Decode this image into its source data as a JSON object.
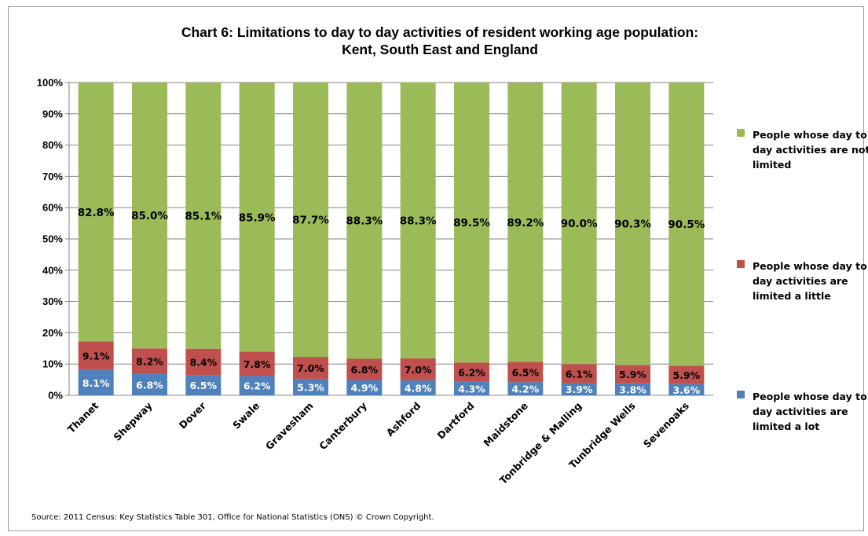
{
  "title_line1": "Chart 6: Limitations to day to day activities of resident working age population:",
  "title_line2": "Kent, South East and England",
  "source": "Source: 2011 Census: Key Statistics Table 301, Office for National Statistics (ONS) © Crown Copyright.",
  "colors": {
    "not_limited": "#9bbb59",
    "limited_little": "#c0504d",
    "limited_lot": "#4f81bd"
  },
  "chart_data": {
    "type": "bar",
    "stacked": true,
    "percent_stacked": true,
    "categories": [
      "Thanet",
      "Shepway",
      "Dover",
      "Swale",
      "Gravesham",
      "Canterbury",
      "Ashford",
      "Dartford",
      "Maidstone",
      "Tonbridge & Malling",
      "Tunbridge Wells",
      "Sevenoaks"
    ],
    "series": [
      {
        "name": "People whose day to day activities are limited a lot",
        "color": "#4f81bd",
        "values": [
          8.1,
          6.8,
          6.5,
          6.2,
          5.3,
          4.9,
          4.8,
          4.3,
          4.2,
          3.9,
          3.8,
          3.6
        ],
        "labels": [
          "8.1%",
          "6.8%",
          "6.5%",
          "6.2%",
          "5.3%",
          "4.9%",
          "4.8%",
          "4.3%",
          "4.2%",
          "3.9%",
          "3.8%",
          "3.6%"
        ]
      },
      {
        "name": "People whose day to day activities are limited a little",
        "color": "#c0504d",
        "values": [
          9.1,
          8.2,
          8.4,
          7.8,
          7.0,
          6.8,
          7.0,
          6.2,
          6.5,
          6.1,
          5.9,
          5.9
        ],
        "labels": [
          "9.1%",
          "8.2%",
          "8.4%",
          "7.8%",
          "7.0%",
          "6.8%",
          "7.0%",
          "6.2%",
          "6.5%",
          "6.1%",
          "5.9%",
          "5.9%"
        ]
      },
      {
        "name": "People whose day to day activities are not limited",
        "color": "#9bbb59",
        "values": [
          82.8,
          85.0,
          85.1,
          85.9,
          87.7,
          88.3,
          88.3,
          89.5,
          89.2,
          90.0,
          90.3,
          90.5
        ],
        "labels": [
          "82.8%",
          "85.0%",
          "85.1%",
          "85.9%",
          "87.7%",
          "88.3%",
          "88.3%",
          "89.5%",
          "89.2%",
          "90.0%",
          "90.3%",
          "90.5%"
        ]
      }
    ],
    "ylim": [
      0,
      100
    ],
    "yticks": [
      "0%",
      "10%",
      "20%",
      "30%",
      "40%",
      "50%",
      "60%",
      "70%",
      "80%",
      "90%",
      "100%"
    ],
    "grid": true,
    "legend": "right",
    "xlabel": "",
    "ylabel": ""
  },
  "legend": [
    {
      "key": "not_limited",
      "text": "People whose day to day activities are not  limited"
    },
    {
      "key": "limited_little",
      "text": "People whose day to day activities are limited a little"
    },
    {
      "key": "limited_lot",
      "text": "People whose day to day activities are limited a lot"
    }
  ]
}
